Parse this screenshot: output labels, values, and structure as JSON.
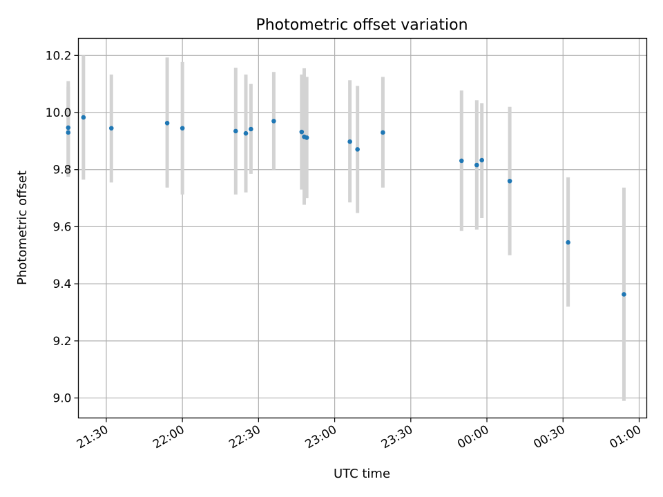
{
  "chart_data": {
    "type": "scatter",
    "title": "Photometric offset variation",
    "xlabel": "UTC time",
    "ylabel": "Photometric offset",
    "grid": true,
    "xlim": [
      "21:19",
      "01:03"
    ],
    "ylim": [
      8.93,
      10.26
    ],
    "xticks": [
      "21:30",
      "22:00",
      "22:30",
      "23:00",
      "23:30",
      "00:00",
      "00:30",
      "01:00"
    ],
    "yticks": [
      "9.0",
      "9.2",
      "9.4",
      "9.6",
      "9.8",
      "10.0",
      "10.2"
    ],
    "colors": {
      "points": "#1f77b4",
      "errorbars": "#d3d3d3",
      "grid": "#b0b0b0"
    },
    "points": [
      {
        "x": "21:15",
        "y": 9.93,
        "lo": 9.775,
        "hi": 10.09
      },
      {
        "x": "21:15",
        "y": 9.947,
        "lo": 9.78,
        "hi": 10.11
      },
      {
        "x": "21:21",
        "y": 9.983,
        "lo": 9.765,
        "hi": 10.2
      },
      {
        "x": "21:32",
        "y": 9.945,
        "lo": 9.755,
        "hi": 10.133
      },
      {
        "x": "21:54",
        "y": 9.963,
        "lo": 9.737,
        "hi": 10.193
      },
      {
        "x": "22:00",
        "y": 9.945,
        "lo": 9.713,
        "hi": 10.177
      },
      {
        "x": "22:21",
        "y": 9.935,
        "lo": 9.713,
        "hi": 10.157
      },
      {
        "x": "22:25",
        "y": 9.927,
        "lo": 9.72,
        "hi": 10.133
      },
      {
        "x": "22:27",
        "y": 9.942,
        "lo": 9.785,
        "hi": 10.1
      },
      {
        "x": "22:36",
        "y": 9.97,
        "lo": 9.8,
        "hi": 10.142
      },
      {
        "x": "22:47",
        "y": 9.932,
        "lo": 9.73,
        "hi": 10.133
      },
      {
        "x": "22:48",
        "y": 9.915,
        "lo": 9.677,
        "hi": 10.155
      },
      {
        "x": "22:49",
        "y": 9.912,
        "lo": 9.7,
        "hi": 10.125
      },
      {
        "x": "23:06",
        "y": 9.898,
        "lo": 9.685,
        "hi": 10.113
      },
      {
        "x": "23:09",
        "y": 9.871,
        "lo": 9.648,
        "hi": 10.093
      },
      {
        "x": "23:19",
        "y": 9.93,
        "lo": 9.737,
        "hi": 10.125
      },
      {
        "x": "23:50",
        "y": 9.831,
        "lo": 9.585,
        "hi": 10.077
      },
      {
        "x": "23:56",
        "y": 9.816,
        "lo": 9.59,
        "hi": 10.043
      },
      {
        "x": "23:58",
        "y": 9.833,
        "lo": 9.63,
        "hi": 10.033
      },
      {
        "x": "00:09",
        "y": 9.76,
        "lo": 9.5,
        "hi": 10.02
      },
      {
        "x": "00:32",
        "y": 9.545,
        "lo": 9.32,
        "hi": 9.773
      },
      {
        "x": "00:54",
        "y": 9.363,
        "lo": 8.99,
        "hi": 9.737
      }
    ]
  }
}
